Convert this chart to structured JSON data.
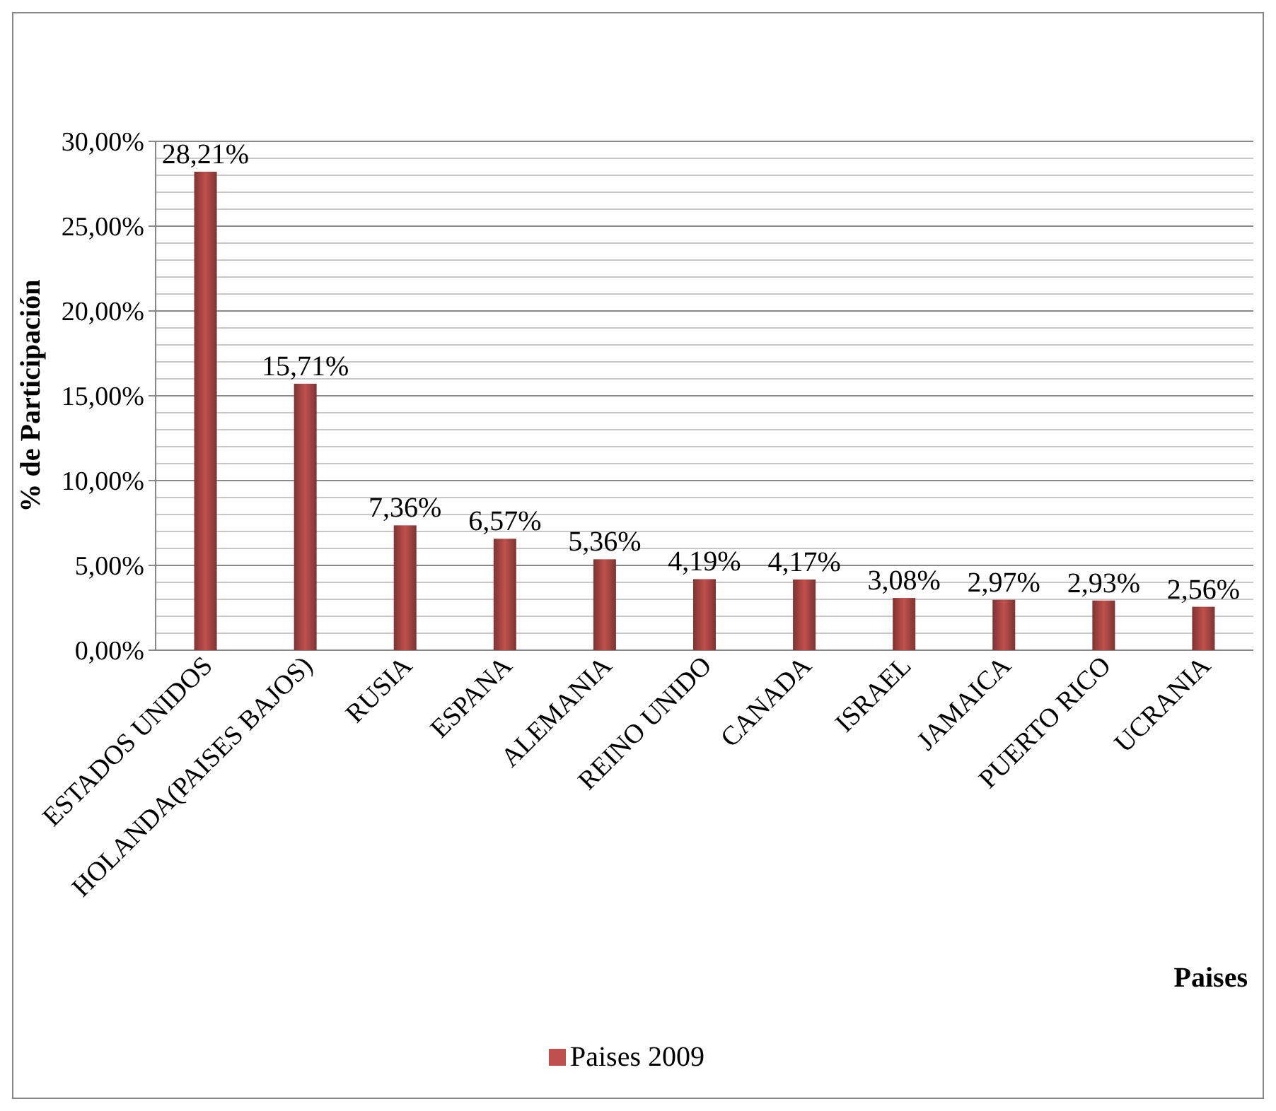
{
  "chart_data": {
    "type": "bar",
    "xlabel": "Paises",
    "ylabel": "% de Participación",
    "categories": [
      "ESTADOS UNIDOS",
      "HOLANDA(PAISES BAJOS)",
      "RUSIA",
      "ESPANA",
      "ALEMANIA",
      "REINO UNIDO",
      "CANADA",
      "ISRAEL",
      "JAMAICA",
      "PUERTO RICO",
      "UCRANIA"
    ],
    "series": [
      {
        "name": "Paises 2009",
        "color": "#c0504d",
        "values": [
          28.21,
          15.71,
          7.36,
          6.57,
          5.36,
          4.19,
          4.17,
          3.08,
          2.97,
          2.93,
          2.56
        ],
        "value_labels": [
          "28,21%",
          "15,71%",
          "7,36%",
          "6,57%",
          "5,36%",
          "4,19%",
          "4,17%",
          "3,08%",
          "2,97%",
          "2,93%",
          "2,56%"
        ]
      }
    ],
    "ylim": [
      0,
      30
    ],
    "yticks": [
      {
        "value": 0,
        "label": "0,00%"
      },
      {
        "value": 1,
        "label": null
      },
      {
        "value": 2,
        "label": null
      },
      {
        "value": 3,
        "label": null
      },
      {
        "value": 4,
        "label": null
      },
      {
        "value": 5,
        "label": "5,00%"
      },
      {
        "value": 6,
        "label": null
      },
      {
        "value": 7,
        "label": null
      },
      {
        "value": 8,
        "label": null
      },
      {
        "value": 9,
        "label": null
      },
      {
        "value": 10,
        "label": "10,00%"
      },
      {
        "value": 11,
        "label": null
      },
      {
        "value": 12,
        "label": null
      },
      {
        "value": 13,
        "label": null
      },
      {
        "value": 14,
        "label": null
      },
      {
        "value": 15,
        "label": "15,00%"
      },
      {
        "value": 16,
        "label": null
      },
      {
        "value": 17,
        "label": null
      },
      {
        "value": 18,
        "label": null
      },
      {
        "value": 19,
        "label": null
      },
      {
        "value": 20,
        "label": "20,00%"
      },
      {
        "value": 21,
        "label": null
      },
      {
        "value": 22,
        "label": null
      },
      {
        "value": 23,
        "label": null
      },
      {
        "value": 24,
        "label": null
      },
      {
        "value": 25,
        "label": "25,00%"
      },
      {
        "value": 26,
        "label": null
      },
      {
        "value": 27,
        "label": null
      },
      {
        "value": 28,
        "label": null
      },
      {
        "value": 29,
        "label": null
      },
      {
        "value": 30,
        "label": "30,00%"
      }
    ],
    "grid": "y",
    "legend": "bottom"
  }
}
